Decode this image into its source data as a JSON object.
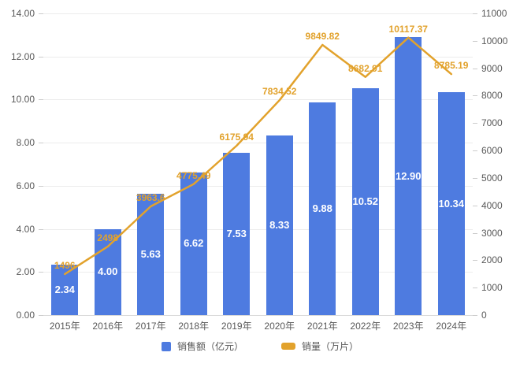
{
  "chart_data": {
    "type": "combo",
    "subtypes": [
      "bar",
      "line"
    ],
    "title": "",
    "xlabel": "",
    "ylabel_left": "",
    "ylabel_right": "",
    "categories": [
      "2015年",
      "2016年",
      "2017年",
      "2018年",
      "2019年",
      "2020年",
      "2021年",
      "2022年",
      "2023年",
      "2024年"
    ],
    "series": [
      {
        "name": "销售额（亿元）",
        "type": "bar",
        "axis": "left",
        "color": "#4E7BE0",
        "values": [
          2.34,
          4.0,
          5.63,
          6.62,
          7.53,
          8.33,
          9.88,
          10.52,
          12.9,
          10.34
        ],
        "labels": [
          "2.34",
          "4.00",
          "5.63",
          "6.62",
          "7.53",
          "8.33",
          "9.88",
          "10.52",
          "12.90",
          "10.34"
        ]
      },
      {
        "name": "销量（万片）",
        "type": "line",
        "axis": "right",
        "color": "#E2A22C",
        "values": [
          1496,
          2498,
          3963.6,
          4775.49,
          6175.94,
          7834.52,
          9849.82,
          8682.91,
          10117.37,
          8785.19
        ],
        "labels": [
          "1496",
          "2498",
          "3963.6",
          "4775.49",
          "6175.94",
          "7834.52",
          "9849.82",
          "8682.91",
          "10117.37",
          "8785.19"
        ]
      }
    ],
    "left_axis": {
      "min": 0,
      "max": 14,
      "step": 2,
      "tick_labels": [
        "0.00",
        "2.00",
        "4.00",
        "6.00",
        "8.00",
        "10.00",
        "12.00",
        "14.00"
      ]
    },
    "right_axis": {
      "min": 0,
      "max": 11000,
      "step": 1000,
      "tick_labels": [
        "0",
        "1000",
        "2000",
        "3000",
        "4000",
        "5000",
        "6000",
        "7000",
        "8000",
        "9000",
        "10000",
        "11000"
      ]
    },
    "grid": true,
    "legend_position": "bottom"
  },
  "legend": {
    "items": [
      {
        "label": "销售额（亿元）",
        "swatch": "square",
        "color": "#4E7BE0"
      },
      {
        "label": "销量（万片）",
        "swatch": "dash",
        "color": "#E2A22C"
      }
    ]
  }
}
